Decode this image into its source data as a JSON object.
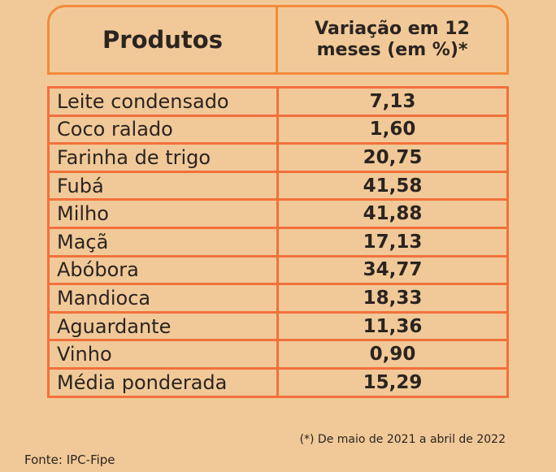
{
  "header": {
    "columns": [
      "Produtos",
      "Variação em 12 meses (em %)*"
    ]
  },
  "table": {
    "rows": [
      [
        "Leite condensado",
        "7,13"
      ],
      [
        "Coco ralado",
        "1,60"
      ],
      [
        "Farinha de trigo",
        "20,75"
      ],
      [
        "Fubá",
        "41,58"
      ],
      [
        "Milho",
        "41,88"
      ],
      [
        "Maçã",
        "17,13"
      ],
      [
        "Abóbora",
        "34,77"
      ],
      [
        "Mandioca",
        "18,33"
      ],
      [
        "Aguardante",
        "11,36"
      ],
      [
        "Vinho",
        "0,90"
      ],
      [
        "Média ponderada",
        "15,29"
      ]
    ]
  },
  "footnote": "(*) De maio de 2021 a abril de 2022",
  "source": "Fonte: IPC-Fipe"
}
